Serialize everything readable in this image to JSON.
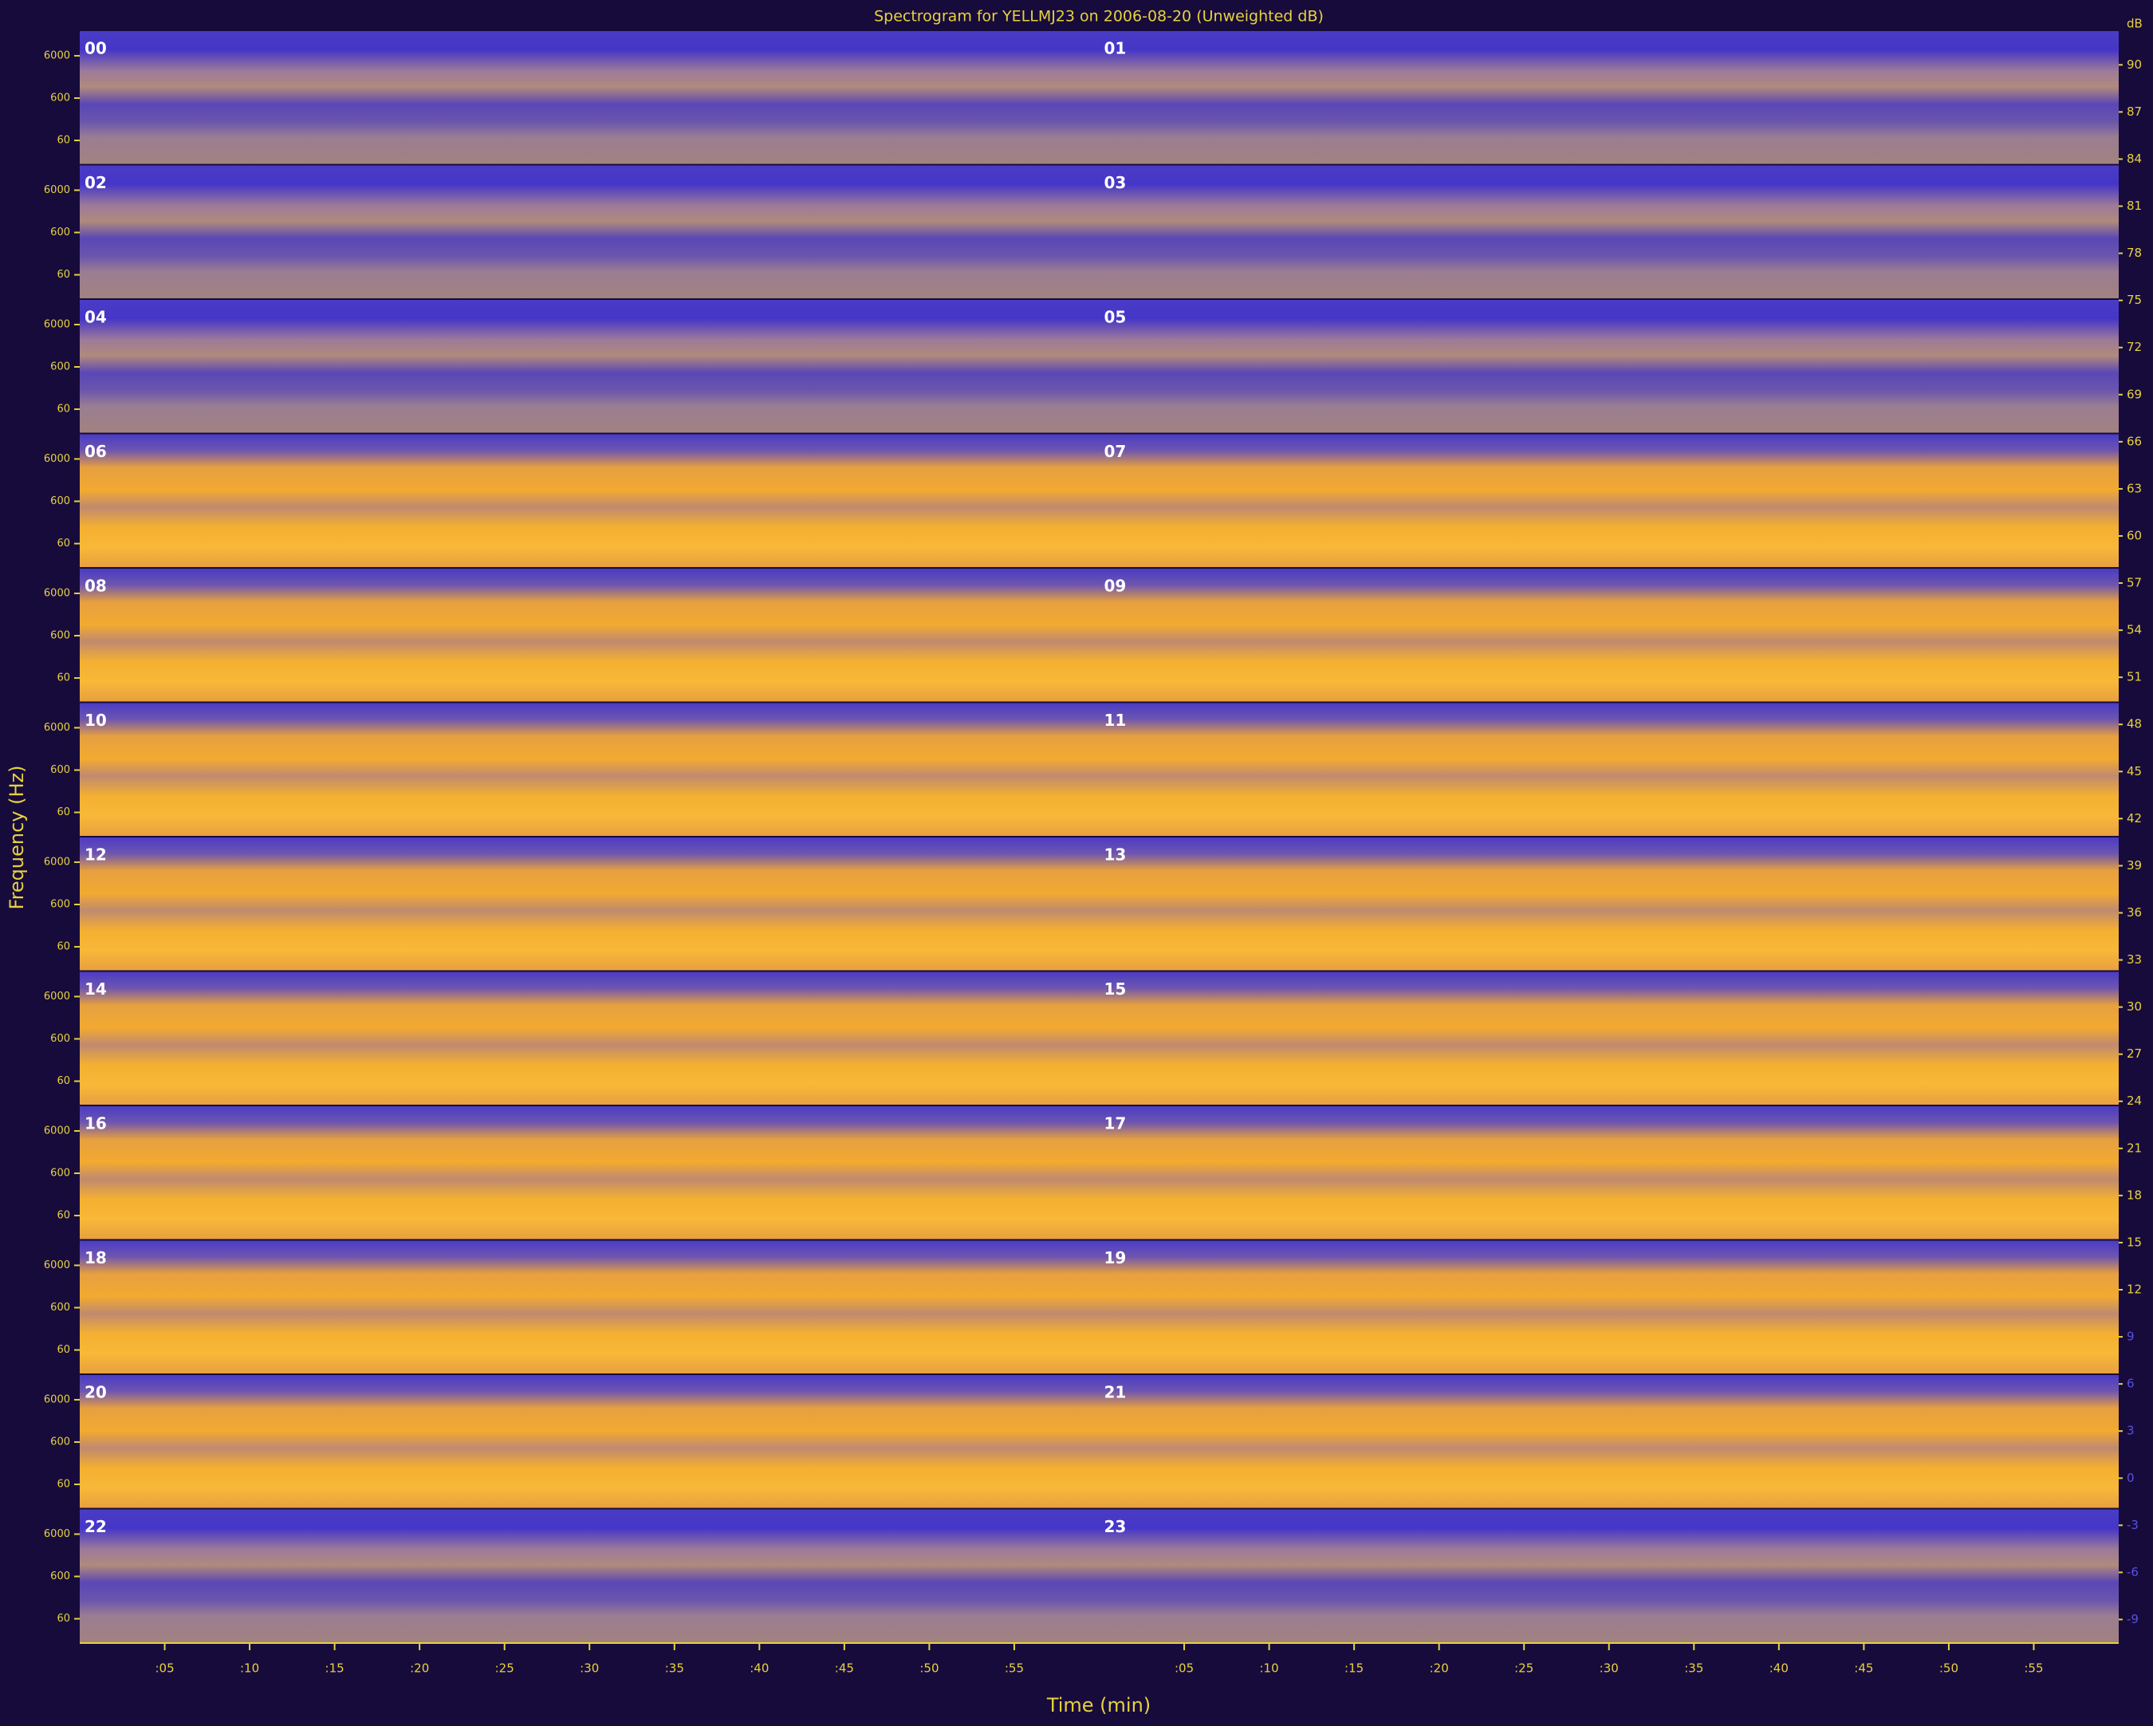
{
  "chart_data": {
    "type": "spectrogram",
    "title": "Spectrogram for YELLMJ23 on 2006-08-20 (Unweighted dB)",
    "xlabel": "Time (min)",
    "ylabel": "Frequency (Hz)",
    "xlim": [
      0,
      60
    ],
    "xticks": [
      {
        "value": 5,
        "label": ":05"
      },
      {
        "value": 10,
        "label": ":10"
      },
      {
        "value": 15,
        "label": ":15"
      },
      {
        "value": 20,
        "label": ":20"
      },
      {
        "value": 25,
        "label": ":25"
      },
      {
        "value": 30,
        "label": ":30"
      },
      {
        "value": 35,
        "label": ":35"
      },
      {
        "value": 40,
        "label": ":40"
      },
      {
        "value": 45,
        "label": ":45"
      },
      {
        "value": 50,
        "label": ":50"
      },
      {
        "value": 55,
        "label": ":55"
      }
    ],
    "yscale": "log",
    "ylim": [
      16,
      24000
    ],
    "yticks": [
      60,
      600,
      6000
    ],
    "panels": [
      "00",
      "01",
      "02",
      "03",
      "04",
      "05",
      "06",
      "07",
      "08",
      "09",
      "10",
      "11",
      "12",
      "13",
      "14",
      "15",
      "16",
      "17",
      "18",
      "19",
      "20",
      "21",
      "22",
      "23"
    ],
    "colorbar": {
      "label": "dB",
      "lim": [
        -10.5,
        92.2
      ],
      "ticks": [
        90,
        87,
        84,
        81,
        78,
        75,
        72,
        69,
        66,
        63,
        60,
        57,
        54,
        51,
        48,
        45,
        42,
        39,
        36,
        33,
        30,
        27,
        24,
        21,
        18,
        15,
        12,
        9,
        6,
        3,
        0,
        -3,
        -6,
        -9
      ]
    }
  }
}
